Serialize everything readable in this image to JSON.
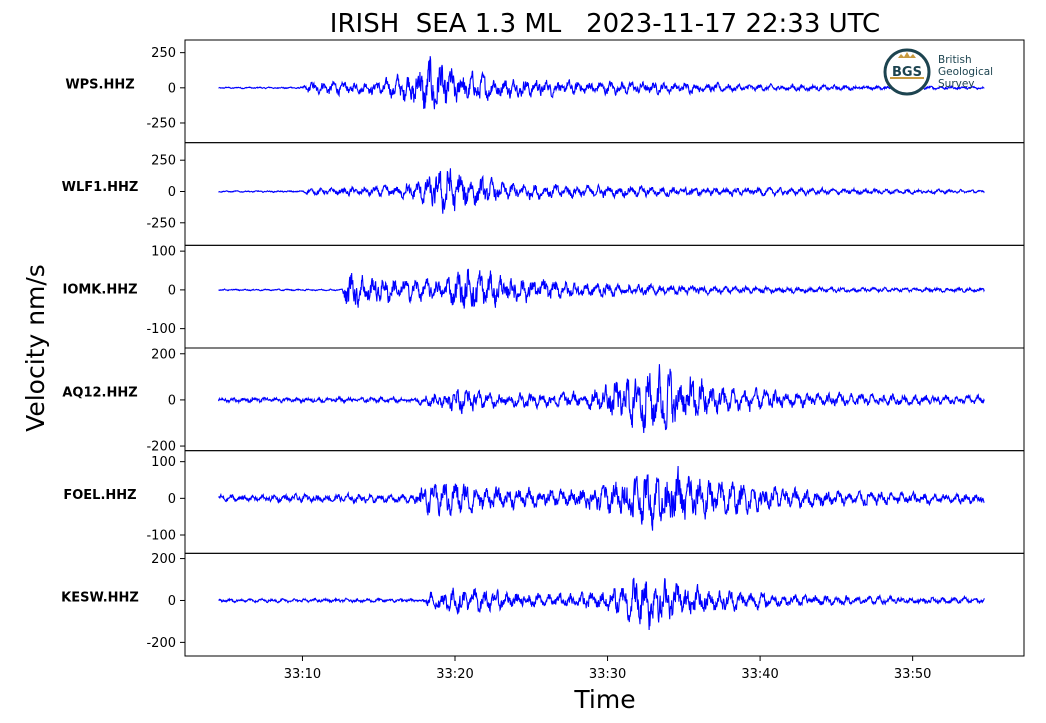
{
  "chart_data": {
    "type": "line",
    "title": "IRISH  SEA 1.3 ML   2023-11-17 22:33 UTC",
    "xlabel": "Time",
    "ylabel": "Velocity nm/s",
    "x_range_seconds": [
      2.3,
      57.3
    ],
    "x_ticks": [
      {
        "t": 10,
        "label": "33:10"
      },
      {
        "t": 20,
        "label": "33:20"
      },
      {
        "t": 30,
        "label": "33:30"
      },
      {
        "t": 40,
        "label": "33:40"
      },
      {
        "t": 50,
        "label": "33:50"
      }
    ],
    "trace_color": "#0000ff",
    "data_start_seconds": 4.5,
    "data_end_seconds": 54.7,
    "series": [
      {
        "name": "WPS.HHZ",
        "ylim": [
          -390,
          340
        ],
        "yticks": [
          {
            "v": 250,
            "label": "250"
          },
          {
            "v": 0,
            "label": "0"
          },
          {
            "v": -250,
            "label": "-250"
          }
        ],
        "noise_level": 6,
        "envelope": [
          [
            4.5,
            8
          ],
          [
            10.0,
            10
          ],
          [
            10.3,
            60
          ],
          [
            12.0,
            70
          ],
          [
            14.0,
            60
          ],
          [
            15.5,
            90
          ],
          [
            17.0,
            170
          ],
          [
            18.0,
            300
          ],
          [
            19.0,
            280
          ],
          [
            20.0,
            180
          ],
          [
            23.0,
            110
          ],
          [
            27.0,
            80
          ],
          [
            33.0,
            60
          ],
          [
            40.0,
            35
          ],
          [
            47.0,
            22
          ],
          [
            54.7,
            14
          ]
        ]
      },
      {
        "name": "WLF1.HHZ",
        "ylim": [
          -430,
          390
        ],
        "yticks": [
          {
            "v": 250,
            "label": "250"
          },
          {
            "v": 0,
            "label": "0"
          },
          {
            "v": -250,
            "label": "-250"
          }
        ],
        "noise_level": 6,
        "envelope": [
          [
            4.5,
            8
          ],
          [
            10.0,
            10
          ],
          [
            10.3,
            30
          ],
          [
            13.0,
            50
          ],
          [
            16.0,
            70
          ],
          [
            18.0,
            150
          ],
          [
            19.5,
            300
          ],
          [
            21.0,
            190
          ],
          [
            23.0,
            110
          ],
          [
            27.0,
            75
          ],
          [
            33.0,
            60
          ],
          [
            40.0,
            45
          ],
          [
            47.0,
            30
          ],
          [
            54.7,
            18
          ]
        ]
      },
      {
        "name": "IOMK.HHZ",
        "ylim": [
          -150,
          115
        ],
        "yticks": [
          {
            "v": 100,
            "label": "100"
          },
          {
            "v": 0,
            "label": "0"
          },
          {
            "v": -100,
            "label": "-100"
          }
        ],
        "noise_level": 3,
        "envelope": [
          [
            4.5,
            3
          ],
          [
            12.6,
            3
          ],
          [
            12.9,
            90
          ],
          [
            14.0,
            60
          ],
          [
            17.0,
            40
          ],
          [
            19.0,
            40
          ],
          [
            21.0,
            90
          ],
          [
            23.0,
            55
          ],
          [
            27.0,
            35
          ],
          [
            31.0,
            22
          ],
          [
            38.0,
            14
          ],
          [
            46.0,
            9
          ],
          [
            54.7,
            7
          ]
        ]
      },
      {
        "name": "AQ12.HHZ",
        "ylim": [
          -220,
          225
        ],
        "yticks": [
          {
            "v": 200,
            "label": "200"
          },
          {
            "v": 0,
            "label": "0"
          },
          {
            "v": -200,
            "label": "-200"
          }
        ],
        "noise_level": 15,
        "envelope": [
          [
            4.5,
            15
          ],
          [
            17.5,
            18
          ],
          [
            18.0,
            40
          ],
          [
            20.0,
            90
          ],
          [
            22.0,
            50
          ],
          [
            26.0,
            45
          ],
          [
            29.0,
            60
          ],
          [
            31.0,
            150
          ],
          [
            33.5,
            210
          ],
          [
            35.5,
            150
          ],
          [
            38.0,
            80
          ],
          [
            42.0,
            50
          ],
          [
            48.0,
            35
          ],
          [
            54.7,
            28
          ]
        ]
      },
      {
        "name": "FOEL.HHZ",
        "ylim": [
          -150,
          130
        ],
        "yticks": [
          {
            "v": 100,
            "label": "100"
          },
          {
            "v": 0,
            "label": "0"
          },
          {
            "v": -100,
            "label": "-100"
          }
        ],
        "noise_level": 14,
        "envelope": [
          [
            4.5,
            14
          ],
          [
            17.0,
            18
          ],
          [
            18.0,
            55
          ],
          [
            20.0,
            75
          ],
          [
            22.0,
            45
          ],
          [
            26.0,
            35
          ],
          [
            28.0,
            40
          ],
          [
            31.0,
            80
          ],
          [
            34.0,
            120
          ],
          [
            36.0,
            95
          ],
          [
            39.0,
            55
          ],
          [
            45.0,
            30
          ],
          [
            54.7,
            22
          ]
        ]
      },
      {
        "name": "KESW.HHZ",
        "ylim": [
          -265,
          225
        ],
        "yticks": [
          {
            "v": 200,
            "label": "200"
          },
          {
            "v": 0,
            "label": "0"
          },
          {
            "v": -200,
            "label": "-200"
          }
        ],
        "noise_level": 12,
        "envelope": [
          [
            4.5,
            12
          ],
          [
            18.0,
            14
          ],
          [
            18.5,
            80
          ],
          [
            20.0,
            95
          ],
          [
            23.0,
            70
          ],
          [
            26.0,
            45
          ],
          [
            29.0,
            60
          ],
          [
            31.5,
            140
          ],
          [
            32.5,
            220
          ],
          [
            34.0,
            140
          ],
          [
            37.0,
            80
          ],
          [
            42.0,
            40
          ],
          [
            48.0,
            28
          ],
          [
            54.7,
            22
          ]
        ]
      }
    ]
  },
  "logo": {
    "abbrev": "BGS",
    "line1": "British",
    "line2": "Geological",
    "line3": "Survey",
    "ring_color": "#1d4450",
    "accent_color": "#c79a3f"
  }
}
